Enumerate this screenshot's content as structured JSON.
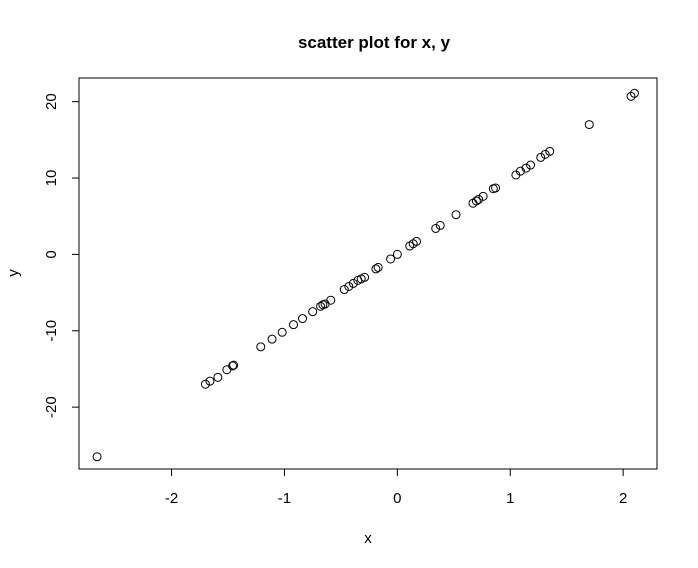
{
  "chart_data": {
    "type": "scatter",
    "title": "scatter plot for x, y",
    "xlabel": "x",
    "ylabel": "y",
    "xlim": [
      -2.82,
      2.3
    ],
    "ylim": [
      -28.1,
      23.1
    ],
    "x_ticks": [
      -2,
      -1,
      0,
      1,
      2
    ],
    "y_ticks": [
      -20,
      -10,
      0,
      10,
      20
    ],
    "grid": false,
    "marker": "open-circle",
    "points": [
      {
        "x": -2.66,
        "y": -26.5
      },
      {
        "x": -1.7,
        "y": -17.0
      },
      {
        "x": -1.66,
        "y": -16.6
      },
      {
        "x": -1.59,
        "y": -16.1
      },
      {
        "x": -1.51,
        "y": -15.1
      },
      {
        "x": -1.46,
        "y": -14.6
      },
      {
        "x": -1.45,
        "y": -14.5
      },
      {
        "x": -1.21,
        "y": -12.1
      },
      {
        "x": -1.11,
        "y": -11.1
      },
      {
        "x": -1.02,
        "y": -10.2
      },
      {
        "x": -0.92,
        "y": -9.2
      },
      {
        "x": -0.84,
        "y": -8.4
      },
      {
        "x": -0.75,
        "y": -7.5
      },
      {
        "x": -0.68,
        "y": -6.8
      },
      {
        "x": -0.66,
        "y": -6.6
      },
      {
        "x": -0.64,
        "y": -6.5
      },
      {
        "x": -0.59,
        "y": -6.0
      },
      {
        "x": -0.47,
        "y": -4.6
      },
      {
        "x": -0.43,
        "y": -4.2
      },
      {
        "x": -0.39,
        "y": -3.8
      },
      {
        "x": -0.35,
        "y": -3.4
      },
      {
        "x": -0.32,
        "y": -3.2
      },
      {
        "x": -0.29,
        "y": -3.0
      },
      {
        "x": -0.19,
        "y": -1.9
      },
      {
        "x": -0.17,
        "y": -1.7
      },
      {
        "x": -0.06,
        "y": -0.6
      },
      {
        "x": 0.0,
        "y": 0.0
      },
      {
        "x": 0.11,
        "y": 1.1
      },
      {
        "x": 0.14,
        "y": 1.4
      },
      {
        "x": 0.17,
        "y": 1.7
      },
      {
        "x": 0.34,
        "y": 3.4
      },
      {
        "x": 0.38,
        "y": 3.8
      },
      {
        "x": 0.52,
        "y": 5.2
      },
      {
        "x": 0.67,
        "y": 6.7
      },
      {
        "x": 0.7,
        "y": 7.0
      },
      {
        "x": 0.72,
        "y": 7.2
      },
      {
        "x": 0.76,
        "y": 7.6
      },
      {
        "x": 0.85,
        "y": 8.6
      },
      {
        "x": 0.87,
        "y": 8.7
      },
      {
        "x": 1.05,
        "y": 10.4
      },
      {
        "x": 1.09,
        "y": 10.9
      },
      {
        "x": 1.14,
        "y": 11.3
      },
      {
        "x": 1.18,
        "y": 11.7
      },
      {
        "x": 1.27,
        "y": 12.7
      },
      {
        "x": 1.31,
        "y": 13.1
      },
      {
        "x": 1.35,
        "y": 13.5
      },
      {
        "x": 1.7,
        "y": 17.0
      },
      {
        "x": 2.07,
        "y": 20.7
      },
      {
        "x": 2.1,
        "y": 21.1
      }
    ]
  }
}
